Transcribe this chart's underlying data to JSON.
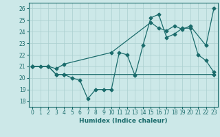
{
  "line1_x": [
    0,
    1,
    2,
    3,
    4,
    5,
    6,
    7,
    8,
    9,
    10,
    11,
    12,
    13,
    14,
    15,
    16,
    17,
    18,
    19,
    20,
    21,
    22,
    23
  ],
  "line1_y": [
    21.0,
    21.0,
    21.0,
    20.3,
    20.3,
    20.0,
    19.8,
    18.2,
    19.0,
    19.0,
    19.0,
    22.2,
    22.0,
    20.2,
    22.8,
    25.2,
    25.5,
    23.5,
    23.8,
    24.3,
    24.3,
    22.0,
    21.5,
    20.5
  ],
  "line2_x": [
    0,
    2,
    3,
    4,
    23
  ],
  "line2_y": [
    21.0,
    21.0,
    20.3,
    20.3,
    20.3
  ],
  "line3_x": [
    0,
    2,
    3,
    4,
    10,
    15,
    16,
    17,
    18,
    19,
    20,
    22,
    23
  ],
  "line3_y": [
    21.0,
    21.0,
    20.8,
    21.2,
    22.2,
    24.8,
    24.3,
    24.1,
    24.5,
    24.2,
    24.5,
    22.8,
    26.0
  ],
  "color": "#1a6b6b",
  "bg_color": "#cce8e8",
  "grid_color": "#aacfcf",
  "xlabel": "Humidex (Indice chaleur)",
  "ylim": [
    17.5,
    26.5
  ],
  "xlim": [
    -0.5,
    23.5
  ],
  "yticks": [
    18,
    19,
    20,
    21,
    22,
    23,
    24,
    25,
    26
  ],
  "xticks": [
    0,
    1,
    2,
    3,
    4,
    5,
    6,
    7,
    8,
    9,
    10,
    11,
    12,
    13,
    14,
    15,
    16,
    17,
    18,
    19,
    20,
    21,
    22,
    23
  ],
  "xtick_labels": [
    "0",
    "1",
    "2",
    "3",
    "4",
    "5",
    "6",
    "7",
    "8",
    "9",
    "10",
    "11",
    "12",
    "13",
    "14",
    "15",
    "16",
    "17",
    "18",
    "19",
    "20",
    "21",
    "22",
    "23"
  ],
  "marker": "D",
  "markersize": 2.5,
  "linewidth": 0.9
}
